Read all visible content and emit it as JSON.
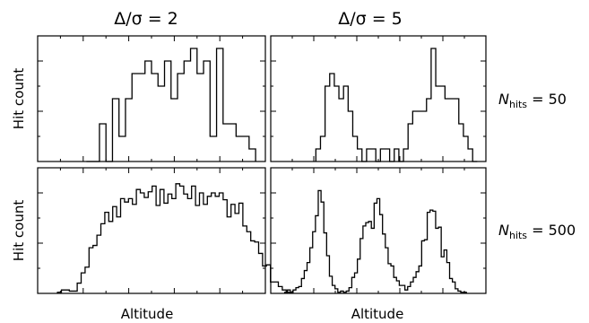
{
  "chart_data": [
    {
      "type": "bar",
      "title": "Δ/σ = 2",
      "ylabel": "Hit count",
      "xlabel": "",
      "row_label": {
        "symbol": "N",
        "subscript": "hits",
        "equals": " = 50"
      },
      "xlim": [
        0,
        1
      ],
      "ylim": [
        0,
        10
      ],
      "bin_width": 0.02857,
      "bin_start": 0.2143,
      "values": [
        0,
        0,
        3,
        0,
        5,
        2,
        5,
        7,
        7,
        8,
        7,
        6,
        8,
        5,
        7,
        8,
        9,
        7,
        8,
        2,
        9,
        3,
        3,
        2,
        2,
        1
      ]
    },
    {
      "type": "bar",
      "title": "Δ/σ = 5",
      "ylabel": "",
      "xlabel": "",
      "row_label": null,
      "xlim": [
        0,
        1
      ],
      "ylim": [
        0,
        10
      ],
      "bin_width": 0.02143,
      "bin_start": 0.2097,
      "values": [
        1,
        2,
        6,
        7,
        6,
        5,
        6,
        4,
        2,
        1,
        0,
        1,
        1,
        0,
        1,
        1,
        0,
        1,
        0,
        1,
        3,
        4,
        4,
        4,
        5,
        9,
        6,
        6,
        5,
        5,
        5,
        3,
        2,
        1,
        0
      ]
    },
    {
      "type": "bar",
      "title": "",
      "ylabel": "Hit count",
      "xlabel": "Altitude",
      "row_label": {
        "symbol": "N",
        "subscript": "hits",
        "equals": " = 500"
      },
      "xlim": [
        0,
        1
      ],
      "ylim": [
        0,
        110
      ],
      "bin_width": 0.01732,
      "bin_start": 0.0871,
      "values": [
        1,
        3,
        3,
        2,
        2,
        9,
        18,
        23,
        40,
        42,
        51,
        61,
        71,
        63,
        76,
        67,
        83,
        80,
        83,
        78,
        91,
        88,
        84,
        89,
        94,
        77,
        91,
        79,
        87,
        83,
        96,
        94,
        87,
        83,
        94,
        77,
        88,
        78,
        85,
        88,
        85,
        88,
        82,
        67,
        78,
        70,
        79,
        59,
        54,
        46,
        45,
        35,
        24,
        25,
        10,
        10,
        6,
        3,
        1
      ]
    },
    {
      "type": "bar",
      "title": "",
      "ylabel": "",
      "xlabel": "Altitude",
      "row_label": null,
      "xlim": [
        0,
        1
      ],
      "ylim": [
        0,
        110
      ],
      "bin_width": 0.01299,
      "bin_start": 0.0649,
      "values": [
        1,
        3,
        1,
        3,
        5,
        6,
        13,
        20,
        27,
        40,
        54,
        68,
        90,
        80,
        53,
        33,
        15,
        7,
        4,
        1,
        2,
        1,
        2,
        5,
        14,
        18,
        30,
        48,
        59,
        62,
        63,
        57,
        79,
        83,
        69,
        52,
        40,
        26,
        24,
        14,
        11,
        7,
        7,
        3,
        6,
        10,
        14,
        19,
        24,
        46,
        47,
        71,
        73,
        72,
        57,
        58,
        32,
        38,
        27,
        13,
        10,
        4,
        2,
        1,
        1
      ]
    }
  ]
}
